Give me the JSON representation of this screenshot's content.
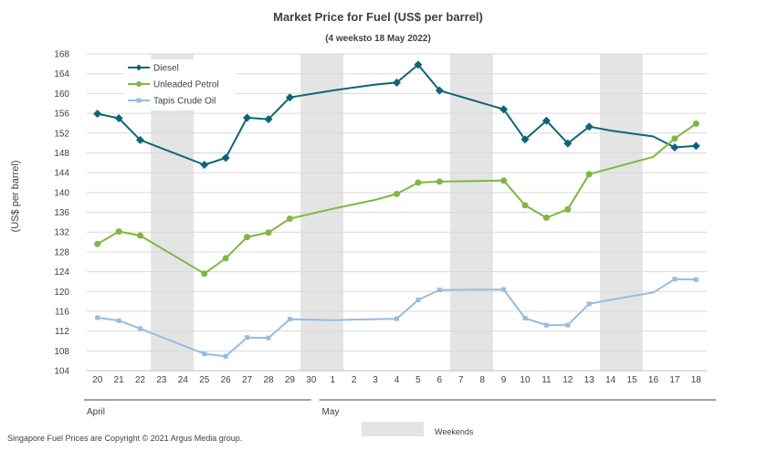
{
  "chart_data": {
    "type": "line",
    "title": "Market Price for Fuel (US$ per barrel)",
    "subtitle": "(4 weeksto 18 May 2022)",
    "ylabel": "(US$ per barrel)",
    "xlabel": "",
    "ylim": [
      104,
      168
    ],
    "y_ticks": [
      104,
      108,
      112,
      116,
      120,
      124,
      128,
      132,
      136,
      140,
      144,
      148,
      152,
      156,
      160,
      164,
      168
    ],
    "grid": true,
    "legend_position": "top-left",
    "categories": [
      "20",
      "21",
      "22",
      "23",
      "24",
      "25",
      "26",
      "27",
      "28",
      "29",
      "30",
      "1",
      "2",
      "3",
      "4",
      "5",
      "6",
      "7",
      "8",
      "9",
      "10",
      "11",
      "12",
      "13",
      "14",
      "15",
      "16",
      "17",
      "18"
    ],
    "month_groups": [
      {
        "label": "April",
        "start": 0,
        "end": 10
      },
      {
        "label": "May",
        "start": 11,
        "end": 28
      }
    ],
    "weekend_bands": [
      [
        3,
        4
      ],
      [
        10,
        11
      ],
      [
        17,
        18
      ],
      [
        24,
        25
      ]
    ],
    "weekend_label": "Weekends",
    "series": [
      {
        "name": "Diesel",
        "color": "#0e6577",
        "marker": "diamond",
        "values": [
          155.9,
          155.0,
          150.6,
          null,
          null,
          145.6,
          147.0,
          155.1,
          154.8,
          159.2,
          null,
          null,
          null,
          null,
          162.2,
          165.8,
          160.6,
          null,
          null,
          156.8,
          150.7,
          154.5,
          149.9,
          153.3,
          null,
          null,
          null,
          149.1,
          149.4
        ]
      },
      {
        "name": "Unleaded Petrol",
        "color": "#7fb742",
        "marker": "circle",
        "values": [
          129.6,
          132.1,
          131.3,
          null,
          null,
          123.6,
          126.7,
          131.0,
          131.9,
          134.7,
          null,
          null,
          null,
          null,
          139.7,
          142.0,
          142.2,
          null,
          null,
          142.4,
          137.4,
          134.9,
          136.6,
          143.7,
          null,
          null,
          null,
          150.9,
          153.9
        ]
      },
      {
        "name": "Tapis Crude Oil",
        "color": "#95bde0",
        "marker": "square",
        "values": [
          114.7,
          114.1,
          112.5,
          null,
          null,
          107.4,
          106.9,
          110.7,
          110.6,
          114.4,
          null,
          null,
          null,
          null,
          114.5,
          118.3,
          120.3,
          null,
          null,
          120.4,
          114.6,
          113.2,
          113.2,
          117.5,
          null,
          null,
          null,
          122.5,
          122.4
        ]
      }
    ],
    "unmarked_points": [
      {
        "series": "Diesel",
        "index": 11,
        "value": 160.6
      },
      {
        "series": "Diesel",
        "index": 13,
        "value": 161.8
      },
      {
        "series": "Diesel",
        "index": 24,
        "value": 152.5
      },
      {
        "series": "Diesel",
        "index": 26,
        "value": 151.3
      },
      {
        "series": "Unleaded Petrol",
        "index": 11,
        "value": 136.7
      },
      {
        "series": "Unleaded Petrol",
        "index": 13,
        "value": 138.5
      },
      {
        "series": "Unleaded Petrol",
        "index": 26,
        "value": 147.2
      },
      {
        "series": "Tapis Crude Oil",
        "index": 11,
        "value": 114.2
      },
      {
        "series": "Tapis Crude Oil",
        "index": 13,
        "value": 114.4
      },
      {
        "series": "Tapis Crude Oil",
        "index": 24,
        "value": 118.3
      },
      {
        "series": "Tapis Crude Oil",
        "index": 26,
        "value": 119.8
      }
    ]
  },
  "footer": {
    "copyright": "Singapore Fuel Prices are Copyright © 2021 Argus Media group."
  }
}
